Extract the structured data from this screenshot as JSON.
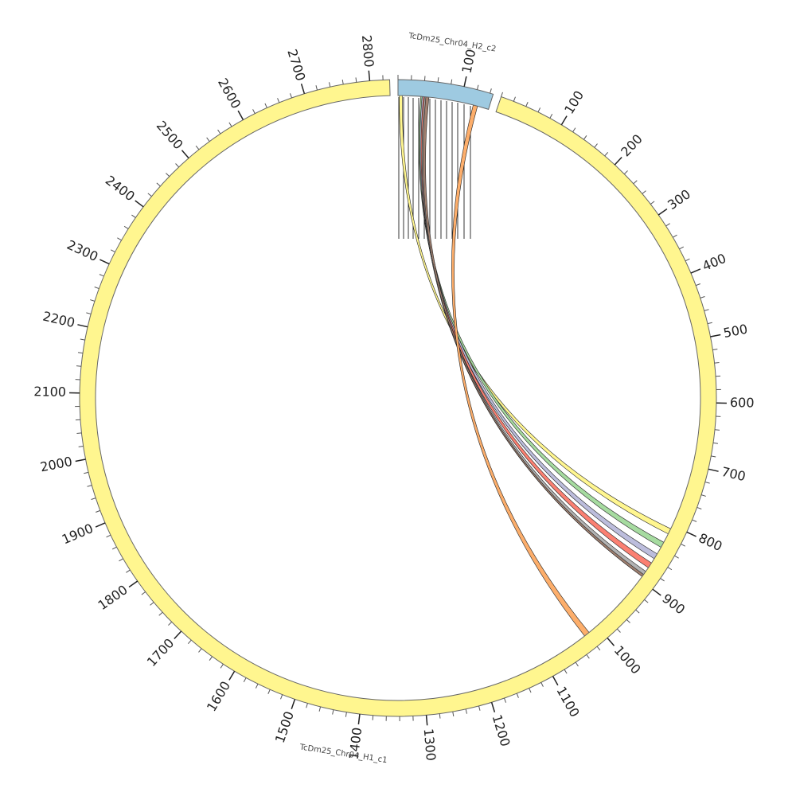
{
  "diagram": {
    "segments": [
      {
        "name": "TcDm25_Chr04_H2_c2",
        "length": 145,
        "color": "#9ecae1",
        "ticks": [
          100
        ]
      },
      {
        "name": "TcDm25_Chr04_H1_c1",
        "length": 2830,
        "color": "#fff68f",
        "ticks": [
          100,
          200,
          300,
          400,
          500,
          600,
          700,
          800,
          900,
          1000,
          1100,
          1200,
          1300,
          1400,
          1500,
          1600,
          1700,
          1800,
          1900,
          2000,
          2100,
          2200,
          2300,
          2400,
          2500,
          2600,
          2700,
          2800
        ]
      }
    ],
    "minor_tick_step": 20,
    "links": [
      {
        "source": 0,
        "source_start": 2,
        "source_end": 7,
        "target": 1,
        "target_start": 806,
        "target_end": 815,
        "color": "#fff68f"
      },
      {
        "source": 0,
        "source_start": 36,
        "source_end": 41,
        "target": 1,
        "target_start": 830,
        "target_end": 839,
        "color": "#a6dba0"
      },
      {
        "source": 0,
        "source_start": 38,
        "source_end": 43,
        "target": 1,
        "target_start": 851,
        "target_end": 860,
        "color": "#bcbddc"
      },
      {
        "source": 0,
        "source_start": 40,
        "source_end": 45,
        "target": 1,
        "target_start": 868,
        "target_end": 877,
        "color": "#fb8072"
      },
      {
        "source": 0,
        "source_start": 42,
        "source_end": 47,
        "target": 1,
        "target_start": 884,
        "target_end": 894,
        "color": "#b3b3b3"
      },
      {
        "source": 0,
        "source_start": 44,
        "source_end": 49,
        "target": 1,
        "target_start": 890,
        "target_end": 894,
        "color": "#a08070"
      },
      {
        "source": 0,
        "source_start": 120,
        "source_end": 127,
        "target": 1,
        "target_start": 1016,
        "target_end": 1025,
        "color": "#fdae6b"
      }
    ]
  }
}
